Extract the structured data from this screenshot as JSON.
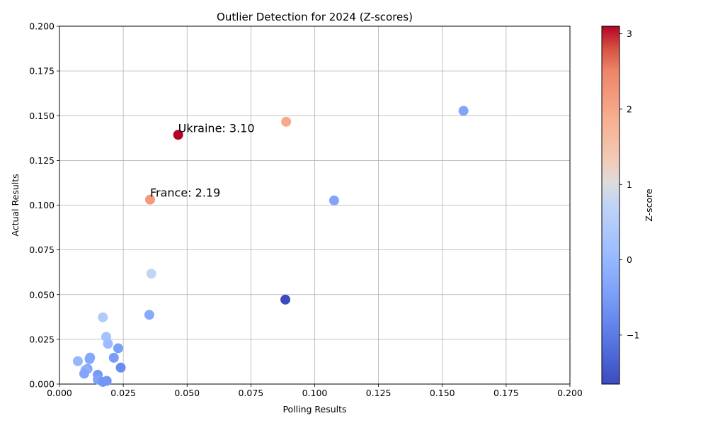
{
  "chart_data": {
    "type": "scatter",
    "title": "Outlier Detection for 2024 (Z-scores)",
    "xlabel": "Polling Results",
    "ylabel": "Actual Results",
    "xlim": [
      0,
      0.2
    ],
    "ylim": [
      0,
      0.2
    ],
    "x_ticks": [
      "0.000",
      "0.025",
      "0.050",
      "0.075",
      "0.100",
      "0.125",
      "0.150",
      "0.175",
      "0.200"
    ],
    "y_ticks": [
      "0.000",
      "0.025",
      "0.050",
      "0.075",
      "0.100",
      "0.125",
      "0.150",
      "0.175",
      "0.200"
    ],
    "grid": true,
    "colormap": "coolwarm",
    "colorbar": {
      "label": "Z-score",
      "range": [
        -1.65,
        3.1
      ],
      "ticks": [
        "3",
        "2",
        "1",
        "0",
        "−1"
      ]
    },
    "points": [
      {
        "x": 0.0465,
        "y": 0.1393,
        "z": 3.1
      },
      {
        "x": 0.0355,
        "y": 0.1031,
        "z": 2.19
      },
      {
        "x": 0.0888,
        "y": 0.1466,
        "z": 1.95
      },
      {
        "x": 0.1583,
        "y": 0.1527,
        "z": -0.35
      },
      {
        "x": 0.1076,
        "y": 0.1026,
        "z": -0.35
      },
      {
        "x": 0.0885,
        "y": 0.0472,
        "z": -1.65
      },
      {
        "x": 0.036,
        "y": 0.0617,
        "z": 0.75
      },
      {
        "x": 0.0352,
        "y": 0.0387,
        "z": -0.25
      },
      {
        "x": 0.017,
        "y": 0.0373,
        "z": 0.45
      },
      {
        "x": 0.0183,
        "y": 0.0264,
        "z": 0.25
      },
      {
        "x": 0.019,
        "y": 0.0225,
        "z": 0.1
      },
      {
        "x": 0.023,
        "y": 0.02,
        "z": -0.45
      },
      {
        "x": 0.0213,
        "y": 0.0147,
        "z": -0.5
      },
      {
        "x": 0.012,
        "y": 0.0148,
        "z": -0.3
      },
      {
        "x": 0.0118,
        "y": 0.014,
        "z": -0.3
      },
      {
        "x": 0.0072,
        "y": 0.0128,
        "z": 0.0
      },
      {
        "x": 0.011,
        "y": 0.0085,
        "z": -0.3
      },
      {
        "x": 0.0102,
        "y": 0.0078,
        "z": -0.15
      },
      {
        "x": 0.0097,
        "y": 0.0058,
        "z": -0.3
      },
      {
        "x": 0.015,
        "y": 0.0052,
        "z": -0.55
      },
      {
        "x": 0.024,
        "y": 0.0092,
        "z": -0.75
      },
      {
        "x": 0.015,
        "y": 0.0025,
        "z": -0.4
      },
      {
        "x": 0.017,
        "y": 0.0012,
        "z": -0.6
      },
      {
        "x": 0.0185,
        "y": 0.0018,
        "z": -0.6
      }
    ],
    "annotations": [
      {
        "text": "Ukraine: 3.10",
        "x": 0.0465,
        "y": 0.1393
      },
      {
        "text": "France: 2.19",
        "x": 0.0355,
        "y": 0.1031
      }
    ]
  }
}
